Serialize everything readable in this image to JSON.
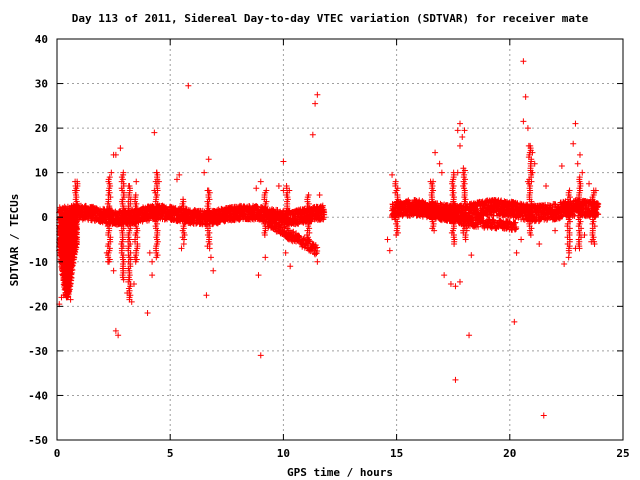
{
  "chart_data": {
    "type": "scatter",
    "title": "Day 113 of 2011, Sidereal Day-to-day VTEC variation (SDTVAR) for receiver mate",
    "xlabel": "GPS time / hours",
    "ylabel": "SDTVAR / TECUs",
    "xlim": [
      0,
      25
    ],
    "ylim": [
      -50,
      40
    ],
    "xticks": [
      0,
      5,
      10,
      15,
      20,
      25
    ],
    "yticks": [
      40,
      30,
      20,
      10,
      0,
      -10,
      -20,
      -30,
      -40,
      -50
    ],
    "grid": true,
    "marker": "plus",
    "color": "#ff0000",
    "band_segments": [
      {
        "x_start": 0.1,
        "x_end": 11.8,
        "center": 0.5,
        "half_width": 1.6
      },
      {
        "x_start": 14.8,
        "x_end": 23.9,
        "center": 1.5,
        "half_width": 1.8
      }
    ],
    "secondary_band": [
      {
        "x_start": 9.3,
        "x_end": 11.5,
        "center_start": -1.0,
        "center_end": -7.5,
        "half_width": 1.2
      },
      {
        "x_start": 16.0,
        "x_end": 18.0,
        "center_start": 2.0,
        "center_end": -1.0,
        "half_width": 1.0
      },
      {
        "x_start": 18.0,
        "x_end": 20.3,
        "center_start": -1.0,
        "center_end": -2.0,
        "half_width": 1.0
      }
    ],
    "points": [
      [
        0.1,
        -19.5
      ],
      [
        0.2,
        -18.0
      ],
      [
        0.3,
        -17.5
      ],
      [
        0.4,
        -16.0
      ],
      [
        0.5,
        -15.0
      ],
      [
        0.6,
        -18.5
      ],
      [
        0.3,
        -12.0
      ],
      [
        0.4,
        -10.0
      ],
      [
        0.5,
        -8.0
      ],
      [
        0.6,
        -6.0
      ],
      [
        0.7,
        -4.0
      ],
      [
        0.2,
        -5.0
      ],
      [
        0.8,
        8.0
      ],
      [
        0.9,
        7.0
      ],
      [
        0.8,
        6.0
      ],
      [
        0.9,
        3.0
      ],
      [
        2.4,
        10.0
      ],
      [
        2.5,
        14.0
      ],
      [
        2.6,
        14.0
      ],
      [
        2.8,
        15.5
      ],
      [
        2.6,
        -25.5
      ],
      [
        2.7,
        -26.5
      ],
      [
        2.2,
        -8.0
      ],
      [
        2.3,
        -10.0
      ],
      [
        2.5,
        -12.0
      ],
      [
        3.1,
        -17.0
      ],
      [
        3.2,
        -18.5
      ],
      [
        3.3,
        -19.0
      ],
      [
        3.4,
        -15.0
      ],
      [
        3.5,
        8.0
      ],
      [
        3.2,
        7.0
      ],
      [
        4.0,
        -21.5
      ],
      [
        4.2,
        -13.0
      ],
      [
        4.3,
        19.0
      ],
      [
        4.4,
        10.0
      ],
      [
        4.5,
        8.0
      ],
      [
        4.3,
        6.0
      ],
      [
        4.1,
        -8.0
      ],
      [
        4.2,
        -10.0
      ],
      [
        5.3,
        8.5
      ],
      [
        5.4,
        9.5
      ],
      [
        5.8,
        29.5
      ],
      [
        5.6,
        -6.0
      ],
      [
        5.5,
        -7.0
      ],
      [
        6.5,
        10.0
      ],
      [
        6.7,
        13.0
      ],
      [
        6.6,
        -17.5
      ],
      [
        6.8,
        -9.0
      ],
      [
        6.9,
        -12.0
      ],
      [
        6.7,
        6.0
      ],
      [
        8.8,
        6.5
      ],
      [
        9.0,
        8.0
      ],
      [
        8.9,
        -13.0
      ],
      [
        9.0,
        -31.0
      ],
      [
        9.2,
        -9.0
      ],
      [
        9.8,
        7.0
      ],
      [
        10.0,
        6.0
      ],
      [
        10.0,
        12.5
      ],
      [
        10.3,
        -11.0
      ],
      [
        10.1,
        -8.0
      ],
      [
        11.3,
        18.5
      ],
      [
        11.4,
        25.5
      ],
      [
        11.5,
        27.5
      ],
      [
        11.6,
        5.0
      ],
      [
        11.5,
        -10.0
      ],
      [
        14.6,
        -5.0
      ],
      [
        14.7,
        -7.5
      ],
      [
        14.8,
        9.5
      ],
      [
        15.0,
        6.0
      ],
      [
        16.5,
        8.0
      ],
      [
        16.7,
        14.5
      ],
      [
        16.9,
        12.0
      ],
      [
        17.0,
        10.0
      ],
      [
        17.1,
        -13.0
      ],
      [
        17.4,
        -15.0
      ],
      [
        17.6,
        -15.5
      ],
      [
        17.7,
        19.5
      ],
      [
        17.8,
        21.0
      ],
      [
        17.9,
        18.0
      ],
      [
        17.8,
        16.0
      ],
      [
        17.7,
        10.0
      ],
      [
        17.6,
        -36.5
      ],
      [
        17.8,
        -14.5
      ],
      [
        18.0,
        19.5
      ],
      [
        18.2,
        -26.5
      ],
      [
        18.1,
        -3.0
      ],
      [
        18.3,
        -8.5
      ],
      [
        17.5,
        3.5
      ],
      [
        20.2,
        -23.5
      ],
      [
        20.3,
        -8.0
      ],
      [
        20.5,
        -5.0
      ],
      [
        20.6,
        35.0
      ],
      [
        20.7,
        27.0
      ],
      [
        20.6,
        21.5
      ],
      [
        20.8,
        20.0
      ],
      [
        20.9,
        16.0
      ],
      [
        21.0,
        14.5
      ],
      [
        21.1,
        12.0
      ],
      [
        21.0,
        10.0
      ],
      [
        20.8,
        8.0
      ],
      [
        21.5,
        -44.5
      ],
      [
        21.3,
        -6.0
      ],
      [
        21.6,
        7.0
      ],
      [
        22.3,
        11.5
      ],
      [
        22.8,
        16.5
      ],
      [
        22.9,
        21.0
      ],
      [
        23.0,
        12.0
      ],
      [
        23.1,
        14.0
      ],
      [
        22.4,
        -10.5
      ],
      [
        22.6,
        -9.0
      ],
      [
        22.9,
        -7.0
      ],
      [
        23.2,
        10.0
      ],
      [
        23.5,
        7.5
      ],
      [
        23.6,
        -5.5
      ],
      [
        23.8,
        6.0
      ],
      [
        22.0,
        -3.0
      ],
      [
        23.3,
        -4.0
      ]
    ],
    "spikes": [
      {
        "x": 0.85,
        "y_min": -1,
        "y_max": 8
      },
      {
        "x": 2.3,
        "y_min": -10,
        "y_max": 9
      },
      {
        "x": 2.9,
        "y_min": -14,
        "y_max": 10
      },
      {
        "x": 3.2,
        "y_min": -18,
        "y_max": 7
      },
      {
        "x": 3.5,
        "y_min": -10,
        "y_max": 5
      },
      {
        "x": 4.4,
        "y_min": -9,
        "y_max": 10
      },
      {
        "x": 5.6,
        "y_min": -5,
        "y_max": 4
      },
      {
        "x": 6.7,
        "y_min": -7,
        "y_max": 6
      },
      {
        "x": 9.2,
        "y_min": -4,
        "y_max": 6
      },
      {
        "x": 10.2,
        "y_min": -5,
        "y_max": 7
      },
      {
        "x": 11.1,
        "y_min": -6,
        "y_max": 5
      },
      {
        "x": 15.0,
        "y_min": -4,
        "y_max": 8
      },
      {
        "x": 16.6,
        "y_min": -3,
        "y_max": 8
      },
      {
        "x": 17.5,
        "y_min": -6,
        "y_max": 10
      },
      {
        "x": 18.0,
        "y_min": -5,
        "y_max": 11
      },
      {
        "x": 20.9,
        "y_min": -4,
        "y_max": 16
      },
      {
        "x": 22.6,
        "y_min": -8,
        "y_max": 6
      },
      {
        "x": 23.1,
        "y_min": -7,
        "y_max": 9
      },
      {
        "x": 23.7,
        "y_min": -6,
        "y_max": 6
      }
    ]
  }
}
